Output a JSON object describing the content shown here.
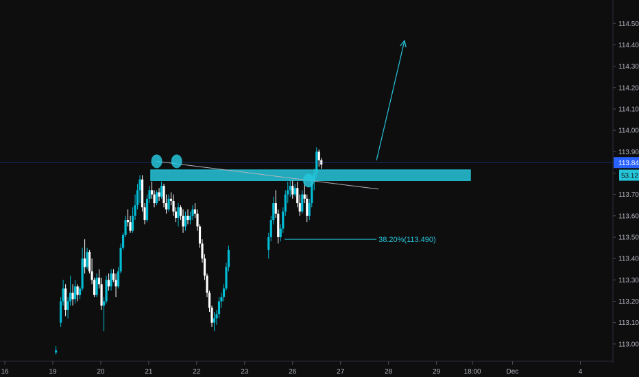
{
  "chart_data": {
    "type": "candlestick",
    "title": "",
    "xlabel": "",
    "ylabel": "",
    "ylim": [
      112.945,
      114.565
    ],
    "y_ticks": [
      "113.000",
      "113.100",
      "113.200",
      "113.300",
      "113.400",
      "113.500",
      "113.600",
      "113.700",
      "113.800",
      "113.900",
      "114.000",
      "114.100",
      "114.200",
      "114.300",
      "114.400",
      "114.500"
    ],
    "x_ticks": [
      {
        "label": "16",
        "index": 0
      },
      {
        "label": "19",
        "index": 12
      },
      {
        "label": "20",
        "index": 24
      },
      {
        "label": "21",
        "index": 36
      },
      {
        "label": "22",
        "index": 48
      },
      {
        "label": "23",
        "index": 60
      },
      {
        "label": "26",
        "index": 72
      },
      {
        "label": "27",
        "index": 84
      },
      {
        "label": "28",
        "index": 96
      },
      {
        "label": "29",
        "index": 108
      },
      {
        "label": "18:00",
        "index": 117
      },
      {
        "label": "Dec",
        "index": 127
      },
      {
        "label": "4",
        "index": 144
      }
    ],
    "x_slots": 145,
    "current_price": "113.849",
    "current_price_value": 113.849,
    "countdown_badge": "53.12",
    "fib_label": "38.20%(113.490)",
    "fib_level": 113.49,
    "resistance_zone": {
      "from_index": 36.5,
      "to_index": 116.5,
      "low": 113.765,
      "high": 113.815
    },
    "target_arrow": {
      "from_index": 93,
      "from_value": 113.86,
      "to_index": 100,
      "to_value": 114.42
    },
    "trend_line": {
      "from_index": 38,
      "from_value": 113.855,
      "to_index": 93.5,
      "to_value": 113.725
    },
    "markers": [
      {
        "index": 38,
        "value": 113.855
      },
      {
        "index": 43,
        "value": 113.855
      },
      {
        "index": 76,
        "value": 113.765
      }
    ],
    "colors": {
      "up": "#00bcd4",
      "down": "#ffffff",
      "accent": "#26c6da",
      "price_badge": "#2962ff"
    },
    "candles": [
      [
        12.8,
        112.96,
        112.99,
        112.95,
        112.97
      ],
      [
        14.0,
        113.1,
        113.22,
        113.08,
        113.2
      ],
      [
        14.6,
        113.2,
        113.3,
        113.18,
        113.26
      ],
      [
        15.2,
        113.26,
        113.28,
        113.13,
        113.16
      ],
      [
        15.8,
        113.16,
        113.22,
        113.12,
        113.2
      ],
      [
        16.4,
        113.2,
        113.32,
        113.18,
        113.24
      ],
      [
        17.0,
        113.24,
        113.28,
        113.18,
        113.21
      ],
      [
        17.6,
        113.21,
        113.3,
        113.19,
        113.27
      ],
      [
        18.2,
        113.27,
        113.28,
        113.2,
        113.23
      ],
      [
        18.8,
        113.23,
        113.27,
        113.21,
        113.26
      ],
      [
        19.4,
        113.26,
        113.45,
        113.25,
        113.4
      ],
      [
        20.0,
        113.4,
        113.49,
        113.33,
        113.36
      ],
      [
        20.6,
        113.36,
        113.45,
        113.35,
        113.43
      ],
      [
        21.2,
        113.43,
        113.44,
        113.33,
        113.34
      ],
      [
        21.8,
        113.34,
        113.4,
        113.28,
        113.3
      ],
      [
        22.4,
        113.3,
        113.31,
        113.22,
        113.23
      ],
      [
        23.0,
        113.23,
        113.33,
        113.22,
        113.31
      ],
      [
        23.6,
        113.31,
        113.35,
        113.26,
        113.28
      ],
      [
        24.2,
        113.28,
        113.31,
        113.16,
        113.18
      ],
      [
        24.8,
        113.18,
        113.22,
        113.06,
        113.2
      ],
      [
        25.4,
        113.2,
        113.32,
        113.19,
        113.3
      ],
      [
        26.0,
        113.3,
        113.33,
        113.25,
        113.27
      ],
      [
        26.6,
        113.27,
        113.35,
        113.25,
        113.33
      ],
      [
        27.2,
        113.33,
        113.35,
        113.29,
        113.3
      ],
      [
        27.8,
        113.3,
        113.33,
        113.22,
        113.27
      ],
      [
        28.4,
        113.27,
        113.36,
        113.26,
        113.34
      ],
      [
        29.0,
        113.34,
        113.47,
        113.33,
        113.45
      ],
      [
        29.6,
        113.45,
        113.52,
        113.44,
        113.51
      ],
      [
        30.2,
        113.51,
        113.6,
        113.5,
        113.58
      ],
      [
        30.8,
        113.58,
        113.63,
        113.55,
        113.57
      ],
      [
        31.4,
        113.57,
        113.6,
        113.52,
        113.53
      ],
      [
        32.0,
        113.53,
        113.64,
        113.52,
        113.6
      ],
      [
        32.6,
        113.6,
        113.7,
        113.58,
        113.65
      ],
      [
        33.2,
        113.65,
        113.75,
        113.63,
        113.72
      ],
      [
        33.8,
        113.72,
        113.79,
        113.66,
        113.77
      ],
      [
        34.4,
        113.77,
        113.79,
        113.62,
        113.64
      ],
      [
        35.0,
        113.64,
        113.66,
        113.56,
        113.58
      ],
      [
        35.6,
        113.58,
        113.7,
        113.57,
        113.68
      ],
      [
        36.2,
        113.68,
        113.74,
        113.66,
        113.72
      ],
      [
        36.8,
        113.72,
        113.76,
        113.68,
        113.7
      ],
      [
        37.4,
        113.7,
        113.72,
        113.64,
        113.66
      ],
      [
        38.0,
        113.66,
        113.72,
        113.65,
        113.71
      ],
      [
        38.6,
        113.71,
        113.73,
        113.67,
        113.69
      ],
      [
        39.2,
        113.69,
        113.76,
        113.68,
        113.74
      ],
      [
        39.8,
        113.74,
        113.75,
        113.64,
        113.66
      ],
      [
        40.4,
        113.66,
        113.7,
        113.61,
        113.63
      ],
      [
        41.0,
        113.63,
        113.7,
        113.62,
        113.68
      ],
      [
        41.6,
        113.68,
        113.71,
        113.65,
        113.67
      ],
      [
        42.2,
        113.67,
        113.7,
        113.6,
        113.62
      ],
      [
        42.8,
        113.62,
        113.64,
        113.57,
        113.59
      ],
      [
        43.4,
        113.59,
        113.66,
        113.55,
        113.64
      ],
      [
        44.0,
        113.64,
        113.65,
        113.58,
        113.6
      ],
      [
        44.6,
        113.6,
        113.63,
        113.52,
        113.55
      ],
      [
        45.2,
        113.55,
        113.62,
        113.53,
        113.6
      ],
      [
        45.8,
        113.6,
        113.63,
        113.56,
        113.58
      ],
      [
        46.4,
        113.58,
        113.62,
        113.56,
        113.6
      ],
      [
        47.0,
        113.6,
        113.65,
        113.58,
        113.63
      ],
      [
        47.6,
        113.63,
        113.66,
        113.59,
        113.61
      ],
      [
        48.2,
        113.61,
        113.63,
        113.53,
        113.55
      ],
      [
        48.8,
        113.55,
        113.56,
        113.45,
        113.47
      ],
      [
        49.4,
        113.47,
        113.49,
        113.38,
        113.4
      ],
      [
        50.0,
        113.4,
        113.42,
        113.3,
        113.32
      ],
      [
        50.6,
        113.32,
        113.33,
        113.22,
        113.24
      ],
      [
        51.2,
        113.24,
        113.25,
        113.15,
        113.17
      ],
      [
        51.8,
        113.17,
        113.18,
        113.08,
        113.1
      ],
      [
        52.4,
        113.1,
        113.15,
        113.06,
        113.12
      ],
      [
        53.0,
        113.12,
        113.16,
        113.09,
        113.14
      ],
      [
        53.6,
        113.14,
        113.22,
        113.12,
        113.2
      ],
      [
        54.2,
        113.2,
        113.24,
        113.17,
        113.22
      ],
      [
        54.8,
        113.22,
        113.28,
        113.2,
        113.26
      ],
      [
        55.4,
        113.26,
        113.38,
        113.25,
        113.36
      ],
      [
        56.0,
        113.36,
        113.46,
        113.34,
        113.44
      ],
      [
        66.0,
        113.44,
        113.52,
        113.4,
        113.5
      ],
      [
        66.6,
        113.5,
        113.6,
        113.48,
        113.58
      ],
      [
        67.2,
        113.58,
        113.69,
        113.56,
        113.66
      ],
      [
        67.8,
        113.66,
        113.72,
        113.59,
        113.61
      ],
      [
        68.4,
        113.61,
        113.63,
        113.47,
        113.5
      ],
      [
        69.0,
        113.5,
        113.56,
        113.48,
        113.54
      ],
      [
        69.6,
        113.54,
        113.64,
        113.52,
        113.62
      ],
      [
        70.2,
        113.62,
        113.72,
        113.6,
        113.7
      ],
      [
        70.8,
        113.7,
        113.76,
        113.66,
        113.72
      ],
      [
        71.4,
        113.72,
        113.77,
        113.69,
        113.74
      ],
      [
        72.0,
        113.74,
        113.77,
        113.68,
        113.7
      ],
      [
        72.6,
        113.7,
        113.75,
        113.69,
        113.73
      ],
      [
        73.2,
        113.73,
        113.76,
        113.64,
        113.66
      ],
      [
        73.8,
        113.66,
        113.7,
        113.6,
        113.62
      ],
      [
        74.4,
        113.62,
        113.72,
        113.61,
        113.7
      ],
      [
        75.0,
        113.7,
        113.76,
        113.66,
        113.68
      ],
      [
        75.6,
        113.68,
        113.7,
        113.57,
        113.6
      ],
      [
        76.2,
        113.6,
        113.68,
        113.58,
        113.66
      ],
      [
        76.8,
        113.66,
        113.78,
        113.64,
        113.76
      ],
      [
        77.4,
        113.76,
        113.82,
        113.72,
        113.8
      ],
      [
        78.0,
        113.8,
        113.92,
        113.78,
        113.9
      ],
      [
        78.6,
        113.9,
        113.91,
        113.83,
        113.86
      ],
      [
        79.2,
        113.86,
        113.87,
        113.82,
        113.84
      ]
    ]
  }
}
